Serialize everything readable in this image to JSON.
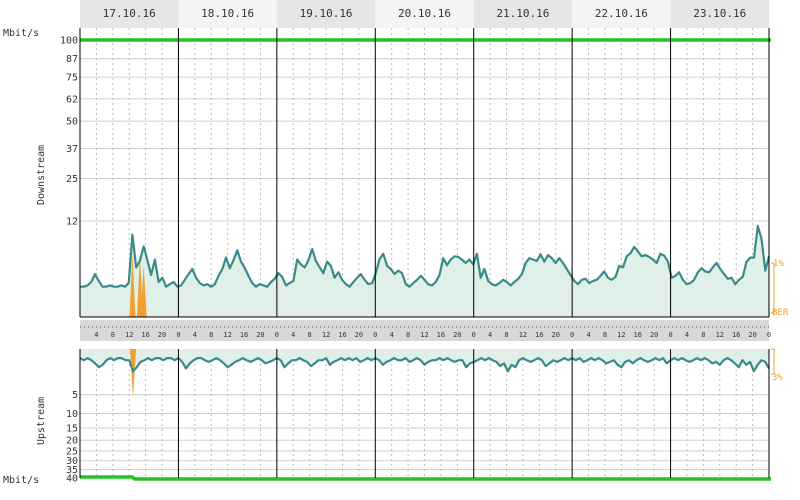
{
  "chart_data": {
    "type": "area",
    "days": [
      "17.10.16",
      "18.10.16",
      "19.10.16",
      "20.10.16",
      "21.10.16",
      "22.10.16",
      "23.10.16"
    ],
    "hour_ticks": [
      "4",
      "8",
      "12",
      "16",
      "20",
      "0"
    ],
    "downstream": {
      "axis_label": "Downstream",
      "unit": "Mbit/s",
      "tick_labels": [
        "100",
        "87",
        "75",
        "62",
        "50",
        "37",
        "25",
        "12"
      ],
      "max_rate": 100,
      "right_labels": [
        "1%",
        "BER"
      ],
      "series": {
        "name": "Downstream",
        "values": [
          1.2,
          1.2,
          1.3,
          1.6,
          2.4,
          1.7,
          1.2,
          1.2,
          1.3,
          1.2,
          1.2,
          1.3,
          1.2,
          1.5,
          8.8,
          3.2,
          4.1,
          6.5,
          4.2,
          2.3,
          4.3,
          1.6,
          2.0,
          1.2,
          1.4,
          1.6,
          1.2,
          1.3,
          1.8,
          2.4,
          3.0,
          2.0,
          1.5,
          1.3,
          1.4,
          1.2,
          1.4,
          2.2,
          3.0,
          4.6,
          3.1,
          4.2,
          5.8,
          4.0,
          3.1,
          2.2,
          1.5,
          1.2,
          1.4,
          1.3,
          1.2,
          1.6,
          1.9,
          2.5,
          2.1,
          1.3,
          1.5,
          1.7,
          4.3,
          3.6,
          3.2,
          4.2,
          6.0,
          4.1,
          3.2,
          2.5,
          4.0,
          3.4,
          2.0,
          2.6,
          1.8,
          1.4,
          1.2,
          1.6,
          2.0,
          2.4,
          1.8,
          1.4,
          1.5,
          2.5,
          4.4,
          5.2,
          3.4,
          3.0,
          2.4,
          2.8,
          2.5,
          1.4,
          1.2,
          1.5,
          1.8,
          2.2,
          1.8,
          1.4,
          1.3,
          1.6,
          2.3,
          4.5,
          3.5,
          4.3,
          4.8,
          4.7,
          4.3,
          3.8,
          4.3,
          3.6,
          5.2,
          2.0,
          3.0,
          1.7,
          1.4,
          1.3,
          1.5,
          1.8,
          1.6,
          1.3,
          1.6,
          1.9,
          2.4,
          3.8,
          4.5,
          4.3,
          4.1,
          5.1,
          4.0,
          5.0,
          4.5,
          3.8,
          4.5,
          3.8,
          3.0,
          2.3,
          1.7,
          1.4,
          1.8,
          1.9,
          1.5,
          1.7,
          1.8,
          2.2,
          2.7,
          2.0,
          1.8,
          2.1,
          3.4,
          3.2,
          4.8,
          5.3,
          6.4,
          5.6,
          4.8,
          5.0,
          4.7,
          4.3,
          3.8,
          5.2,
          4.9,
          4.0,
          2.0,
          2.2,
          2.6,
          1.8,
          1.4,
          1.5,
          1.8,
          2.6,
          3.1,
          2.7,
          2.6,
          3.2,
          3.8,
          3.0,
          2.4,
          1.9,
          2.0,
          1.4,
          1.8,
          2.1,
          4.0,
          4.6,
          4.6,
          10.8,
          8.0,
          2.8,
          4.8
        ]
      }
    },
    "upstream": {
      "axis_label": "Upstream",
      "unit": "Mbit/s",
      "tick_labels": [
        "5",
        "10",
        "15",
        "20",
        "25",
        "30",
        "35",
        "40"
      ],
      "tick_values": [
        5,
        10,
        15,
        20,
        25,
        30,
        35,
        40
      ],
      "max_rate": 40,
      "right_labels": [
        "3%"
      ],
      "series": {
        "name": "Upstream",
        "values": [
          0.2,
          0.3,
          0.2,
          0.3,
          0.5,
          0.8,
          0.6,
          0.3,
          0.2,
          0.3,
          0.2,
          0.2,
          0.3,
          0.3,
          1.2,
          0.8,
          0.4,
          0.3,
          0.2,
          0.3,
          0.2,
          0.2,
          0.3,
          0.2,
          0.2,
          0.3,
          0.2,
          0.4,
          0.9,
          0.5,
          0.3,
          0.2,
          0.2,
          0.3,
          0.4,
          0.3,
          0.2,
          0.3,
          0.5,
          0.8,
          0.6,
          0.4,
          0.3,
          0.2,
          0.3,
          0.4,
          0.3,
          0.2,
          0.3,
          0.5,
          0.4,
          0.3,
          0.2,
          0.3,
          0.8,
          0.5,
          0.3,
          0.3,
          0.2,
          0.3,
          0.4,
          0.7,
          0.5,
          0.3,
          0.3,
          0.2,
          0.6,
          0.4,
          0.3,
          0.2,
          0.3,
          0.2,
          0.3,
          0.2,
          0.4,
          0.3,
          0.2,
          0.3,
          0.2,
          0.3,
          0.6,
          0.4,
          0.3,
          0.2,
          0.3,
          0.3,
          0.2,
          0.4,
          0.3,
          0.2,
          0.3,
          0.6,
          0.4,
          0.3,
          0.3,
          0.2,
          0.3,
          0.2,
          0.3,
          0.4,
          0.3,
          0.3,
          0.8,
          0.5,
          0.4,
          0.3,
          0.2,
          0.3,
          0.2,
          0.3,
          0.4,
          0.7,
          0.5,
          1.2,
          0.6,
          0.8,
          0.3,
          0.2,
          0.3,
          0.4,
          0.3,
          0.2,
          0.3,
          0.7,
          0.5,
          0.3,
          0.4,
          0.3,
          0.2,
          0.3,
          0.2,
          0.3,
          0.2,
          0.4,
          0.3,
          0.2,
          0.3,
          0.2,
          0.3,
          0.5,
          0.4,
          0.3,
          0.6,
          0.8,
          0.4,
          0.3,
          0.5,
          0.3,
          0.2,
          0.3,
          0.4,
          0.3,
          0.2,
          0.3,
          0.2,
          0.5,
          0.3,
          0.2,
          0.3,
          0.2,
          0.3,
          0.4,
          0.3,
          0.2,
          0.3,
          0.2,
          0.3,
          0.5,
          0.4,
          0.6,
          0.3,
          0.2,
          0.3,
          0.5,
          0.8,
          0.3,
          0.6,
          0.4,
          1.2,
          0.6,
          0.3,
          0.4,
          0.9
        ]
      }
    },
    "errors": {
      "downstream_peaks": [
        {
          "i": 14,
          "v": 5.2
        },
        {
          "i": 16,
          "v": 5.0
        },
        {
          "i": 17,
          "v": 3.5
        }
      ],
      "upstream_peaks": [
        {
          "i": 14,
          "v": 1.8
        }
      ]
    },
    "colors": {
      "line": "#3a8a8a",
      "fill": "#e0f0e8",
      "sync": "#22c422",
      "error": "#f0a030",
      "day_bg": "#e6e6e6",
      "day_bg_alt": "#f4f4f4",
      "day_sep": "#000000",
      "grid": "#cfcfcf",
      "dotted": "#bbbbbb",
      "scale_bar": "#d8d8d8"
    },
    "grid": true,
    "legend": "none"
  }
}
